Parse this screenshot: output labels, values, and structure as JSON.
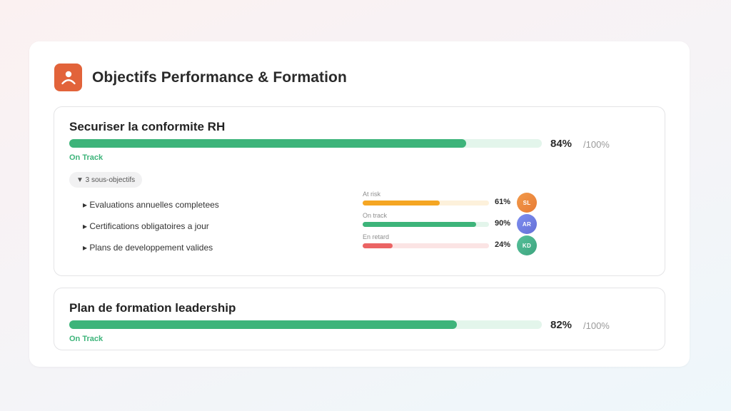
{
  "header": {
    "title": "Objectifs Performance & Formation",
    "icon": "user-icon",
    "icon_color": "#e2633a"
  },
  "objectives": [
    {
      "title": "Securiser la conformite RH",
      "progress": 84,
      "progress_label": "84%",
      "max_label": "/100%",
      "status": "On Track",
      "toggle_label": "▼ 3 sous-objectifs",
      "sub_objectives": [
        {
          "label": "▸ Evaluations annuelles completees",
          "status": "At risk",
          "progress": 61,
          "progress_label": "61%",
          "initials": "SL",
          "color": "#f5a623",
          "track": "#fdf1db"
        },
        {
          "label": "▸ Certifications obligatoires a jour",
          "status": "On track",
          "progress": 90,
          "progress_label": "90%",
          "initials": "AR",
          "color": "#3db47a",
          "track": "#e3f5eb"
        },
        {
          "label": "▸ Plans de developpement valides",
          "status": "En retard",
          "progress": 24,
          "progress_label": "24%",
          "initials": "KD",
          "color": "#eb6464",
          "track": "#fbe4e4"
        }
      ]
    },
    {
      "title": "Plan de formation leadership",
      "progress": 82,
      "progress_label": "82%",
      "max_label": "/100%",
      "status": "On Track"
    }
  ],
  "colors": {
    "accent_green": "#3db47a",
    "avatar_sl": "#ec8a3e",
    "avatar_ar": "#6f7fe0",
    "avatar_kd": "#45b08a"
  }
}
